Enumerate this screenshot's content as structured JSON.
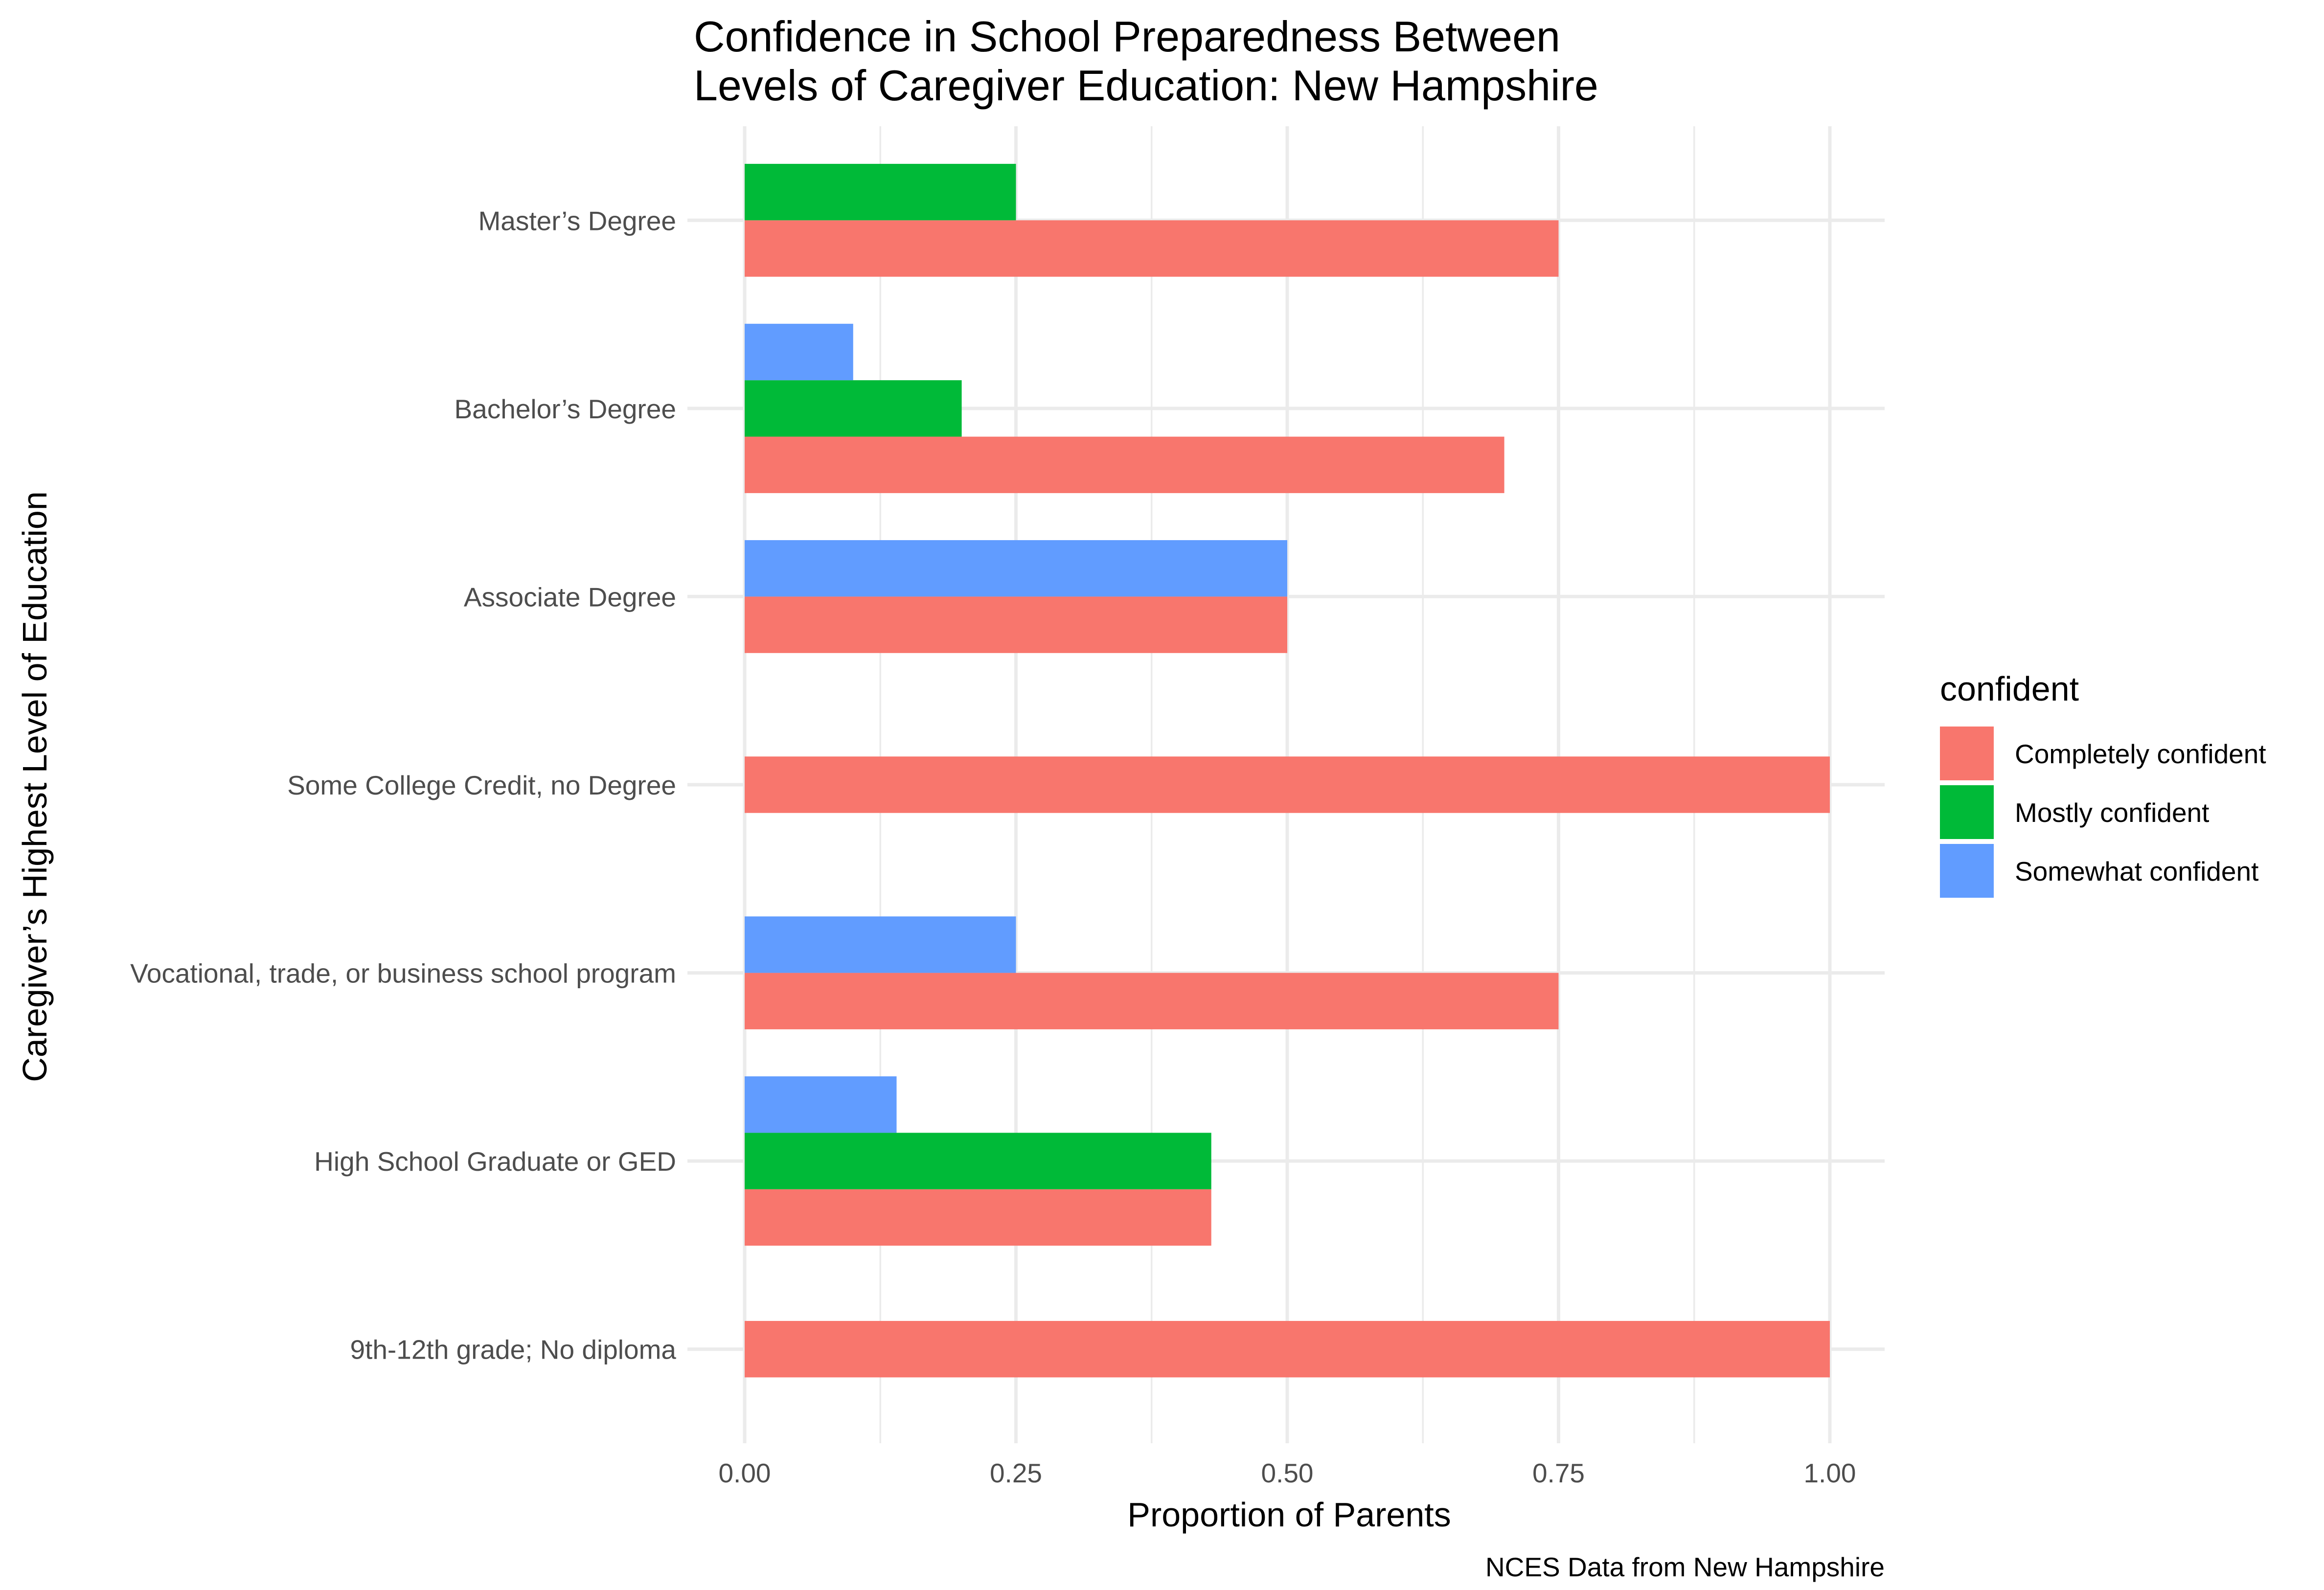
{
  "chart_data": {
    "type": "bar",
    "orientation": "horizontal",
    "position": "dodge",
    "title": "Confidence in School Preparedness Between Levels of Caregiver Education: New Hampshire",
    "title_lines": [
      "Confidence in School Preparedness Between",
      "Levels of Caregiver Education: New Hampshire"
    ],
    "xlabel": "Proportion of Parents",
    "ylabel": "Caregiver’s Highest Level of Education",
    "caption": "NCES Data from New Hampshire",
    "xlim": [
      0,
      1
    ],
    "x_ticks": [
      "0.00",
      "0.25",
      "0.50",
      "0.75",
      "1.00"
    ],
    "grid": true,
    "legend": {
      "title": "confident",
      "position": "right",
      "entries": [
        {
          "name": "Completely confident",
          "color": "#F8766D"
        },
        {
          "name": "Mostly confident",
          "color": "#00BA38"
        },
        {
          "name": "Somewhat confident",
          "color": "#619CFF"
        }
      ]
    },
    "categories": [
      "9th-12th grade; No diploma",
      "High School Graduate or GED",
      "Vocational, trade, or business school program",
      "Some College Credit, no Degree",
      "Associate Degree",
      "Bachelor’s Degree",
      "Master’s Degree"
    ],
    "series": [
      {
        "name": "Completely confident",
        "color": "#F8766D",
        "values": [
          1.0,
          0.43,
          0.75,
          1.0,
          0.5,
          0.7,
          0.75
        ]
      },
      {
        "name": "Mostly confident",
        "color": "#00BA38",
        "values": [
          null,
          0.43,
          null,
          null,
          null,
          0.2,
          0.25
        ]
      },
      {
        "name": "Somewhat confident",
        "color": "#619CFF",
        "values": [
          null,
          0.14,
          0.25,
          null,
          0.5,
          0.1,
          null
        ]
      }
    ]
  }
}
